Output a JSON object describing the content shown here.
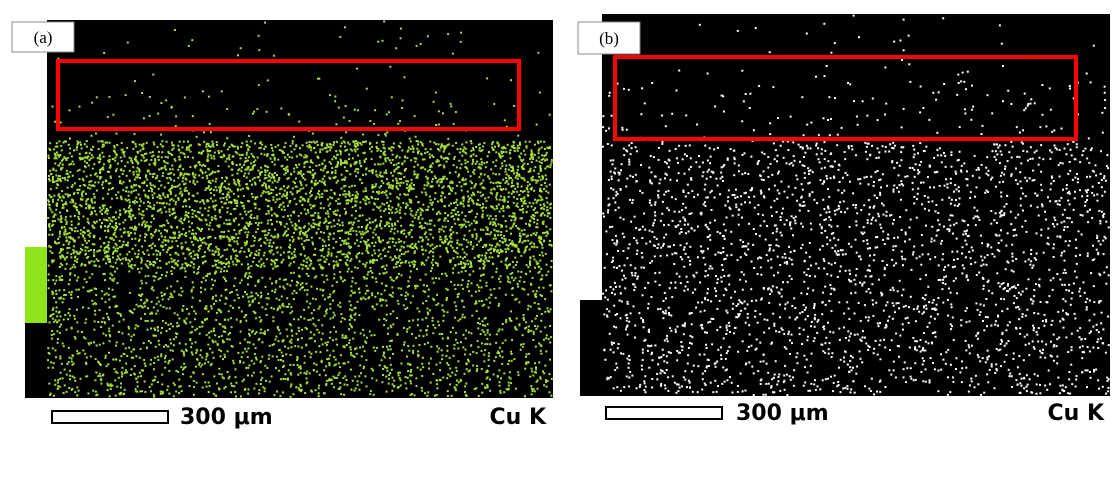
{
  "panels": [
    {
      "label": "(a)",
      "scale": "300 μm",
      "element": "Cu K"
    },
    {
      "label": "(b)",
      "scale": "300 μm",
      "element": "Cu K"
    }
  ]
}
